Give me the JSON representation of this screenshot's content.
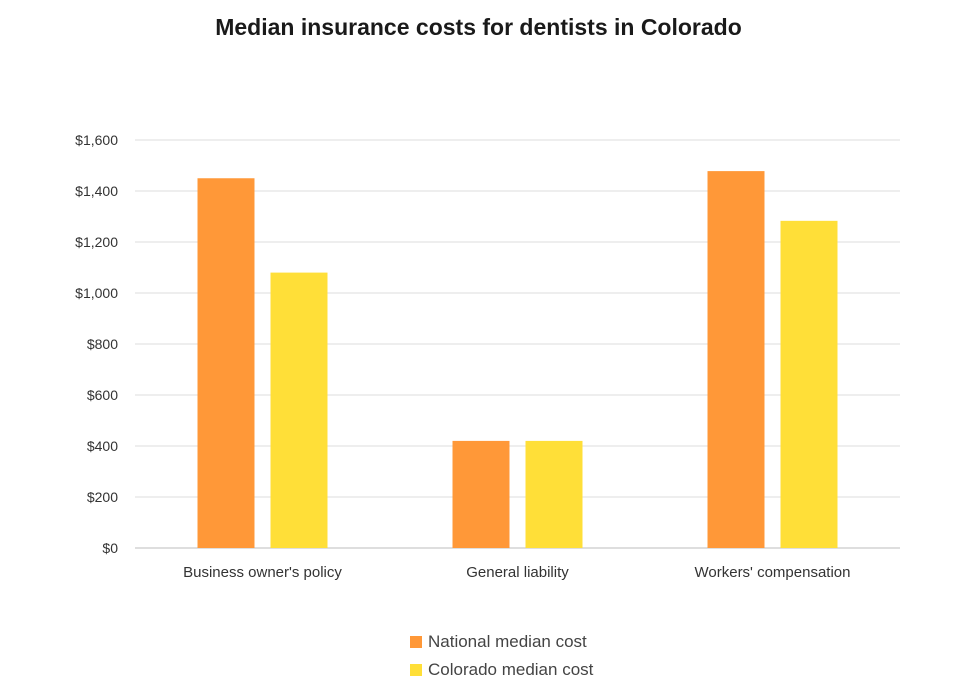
{
  "chart_data": {
    "type": "bar",
    "title": "Median insurance costs for dentists in Colorado",
    "categories": [
      "Business owner's policy",
      "General liability",
      "Workers' compensation"
    ],
    "series": [
      {
        "name": "National median cost",
        "color": "#FF9838",
        "values": [
          1450,
          420,
          1478
        ]
      },
      {
        "name": "Colorado median cost",
        "color": "#FFDF38",
        "values": [
          1080,
          420,
          1283
        ]
      }
    ],
    "yticks": [
      "$0",
      "$200",
      "$400",
      "$600",
      "$800",
      "$1,000",
      "$1,200",
      "$1,400",
      "$1,600"
    ],
    "ylim": [
      0,
      1600
    ],
    "xlabel": "",
    "ylabel": "",
    "grid": true,
    "legend_position": "bottom-center"
  }
}
